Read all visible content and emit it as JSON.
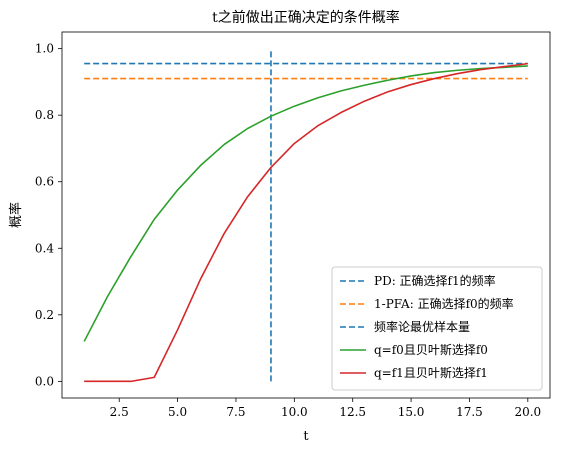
{
  "chart_data": {
    "type": "line",
    "title": "t之前做出正确决定的条件概率",
    "xlabel": "t",
    "ylabel": "概率",
    "xlim": [
      0.05,
      20.95
    ],
    "ylim": [
      -0.05,
      1.05
    ],
    "xticks": [
      2.5,
      5.0,
      7.5,
      10.0,
      12.5,
      15.0,
      17.5,
      20.0
    ],
    "xtick_labels": [
      "2.5",
      "5.0",
      "7.5",
      "10.0",
      "12.5",
      "15.0",
      "17.5",
      "20.0"
    ],
    "yticks": [
      0.0,
      0.2,
      0.4,
      0.6,
      0.8,
      1.0
    ],
    "ytick_labels": [
      "0.0",
      "0.2",
      "0.4",
      "0.6",
      "0.8",
      "1.0"
    ],
    "grid": false,
    "legend_position": "lower-right",
    "series": [
      {
        "name": "PD: 正确选择f1的频率",
        "kind": "hline",
        "style": "dashed",
        "color": "#1f77b4",
        "y": 0.955,
        "x_range": [
          1,
          20
        ]
      },
      {
        "name": "1-PFA: 正确选择f0的频率",
        "kind": "hline",
        "style": "dashed",
        "color": "#ff7f0e",
        "y": 0.91,
        "x_range": [
          1,
          20
        ]
      },
      {
        "name": "频率论最优样本量",
        "kind": "vline",
        "style": "dashed",
        "color": "#1f77b4",
        "x": 9,
        "y_range": [
          0,
          1
        ]
      },
      {
        "name": "q=f0且贝叶斯选择f0",
        "kind": "line",
        "style": "solid",
        "color": "#2ca02c",
        "x": [
          1,
          2,
          3,
          4,
          5,
          6,
          7,
          8,
          9,
          10,
          11,
          12,
          13,
          14,
          15,
          16,
          17,
          18,
          19,
          20
        ],
        "y": [
          0.12,
          0.255,
          0.375,
          0.487,
          0.575,
          0.65,
          0.712,
          0.76,
          0.797,
          0.827,
          0.852,
          0.873,
          0.89,
          0.905,
          0.918,
          0.928,
          0.935,
          0.94,
          0.944,
          0.948
        ]
      },
      {
        "name": "q=f1且贝叶斯选择f1",
        "kind": "line",
        "style": "solid",
        "color": "#d62728",
        "x": [
          1,
          2,
          3,
          4,
          5,
          6,
          7,
          8,
          9,
          10,
          11,
          12,
          13,
          14,
          15,
          16,
          17,
          18,
          19,
          20
        ],
        "y": [
          0.0,
          0.0,
          0.0,
          0.012,
          0.155,
          0.31,
          0.445,
          0.555,
          0.643,
          0.715,
          0.768,
          0.808,
          0.842,
          0.87,
          0.892,
          0.91,
          0.925,
          0.937,
          0.946,
          0.955
        ]
      }
    ]
  }
}
